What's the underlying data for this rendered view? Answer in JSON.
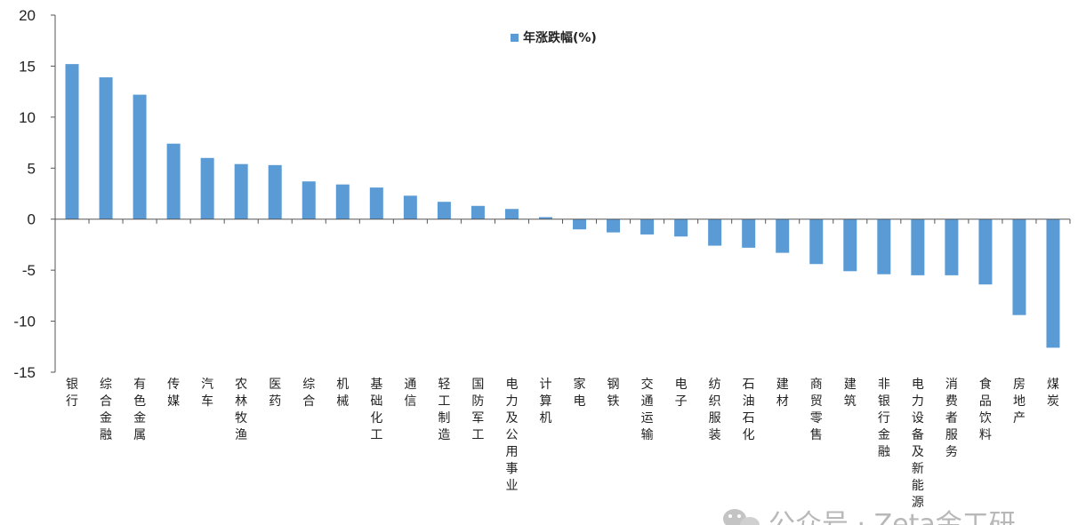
{
  "chart_data": {
    "type": "bar",
    "title": "",
    "xlabel": "",
    "ylabel": "",
    "ylim": [
      -15,
      20
    ],
    "yticks": [
      "20",
      "15",
      "10",
      "5",
      "0",
      "-5",
      "-10",
      "-15"
    ],
    "grid": false,
    "legend_position": "top-center",
    "bar_color": "#5b9bd5",
    "series": [
      {
        "name": "年涨跌幅(%)",
        "values": [
          15.2,
          13.9,
          12.2,
          7.4,
          6.0,
          5.4,
          5.3,
          3.7,
          3.4,
          3.1,
          2.3,
          1.7,
          1.3,
          1.0,
          0.2,
          -1.0,
          -1.3,
          -1.5,
          -1.7,
          -2.6,
          -2.8,
          -3.3,
          -4.4,
          -5.1,
          -5.4,
          -5.5,
          -5.5,
          -6.4,
          -9.4,
          -12.6
        ]
      }
    ],
    "categories": [
      "银行",
      "综合金融",
      "有色金属",
      "传媒",
      "汽车",
      "农林牧渔",
      "医药",
      "综合",
      "机械",
      "基础化工",
      "通信",
      "轻工制造",
      "国防军工",
      "电力及公用事业",
      "计算机",
      "家电",
      "钢铁",
      "交通运输",
      "电子",
      "纺织服装",
      "石油石化",
      "建材",
      "商贸零售",
      "建筑",
      "非银行金融",
      "电力设备及新能源",
      "消费者服务",
      "食品饮料",
      "房地产",
      "煤炭"
    ]
  },
  "watermark": {
    "icon": "wechat-icon",
    "text": "公众号 · Zeta金工研"
  }
}
